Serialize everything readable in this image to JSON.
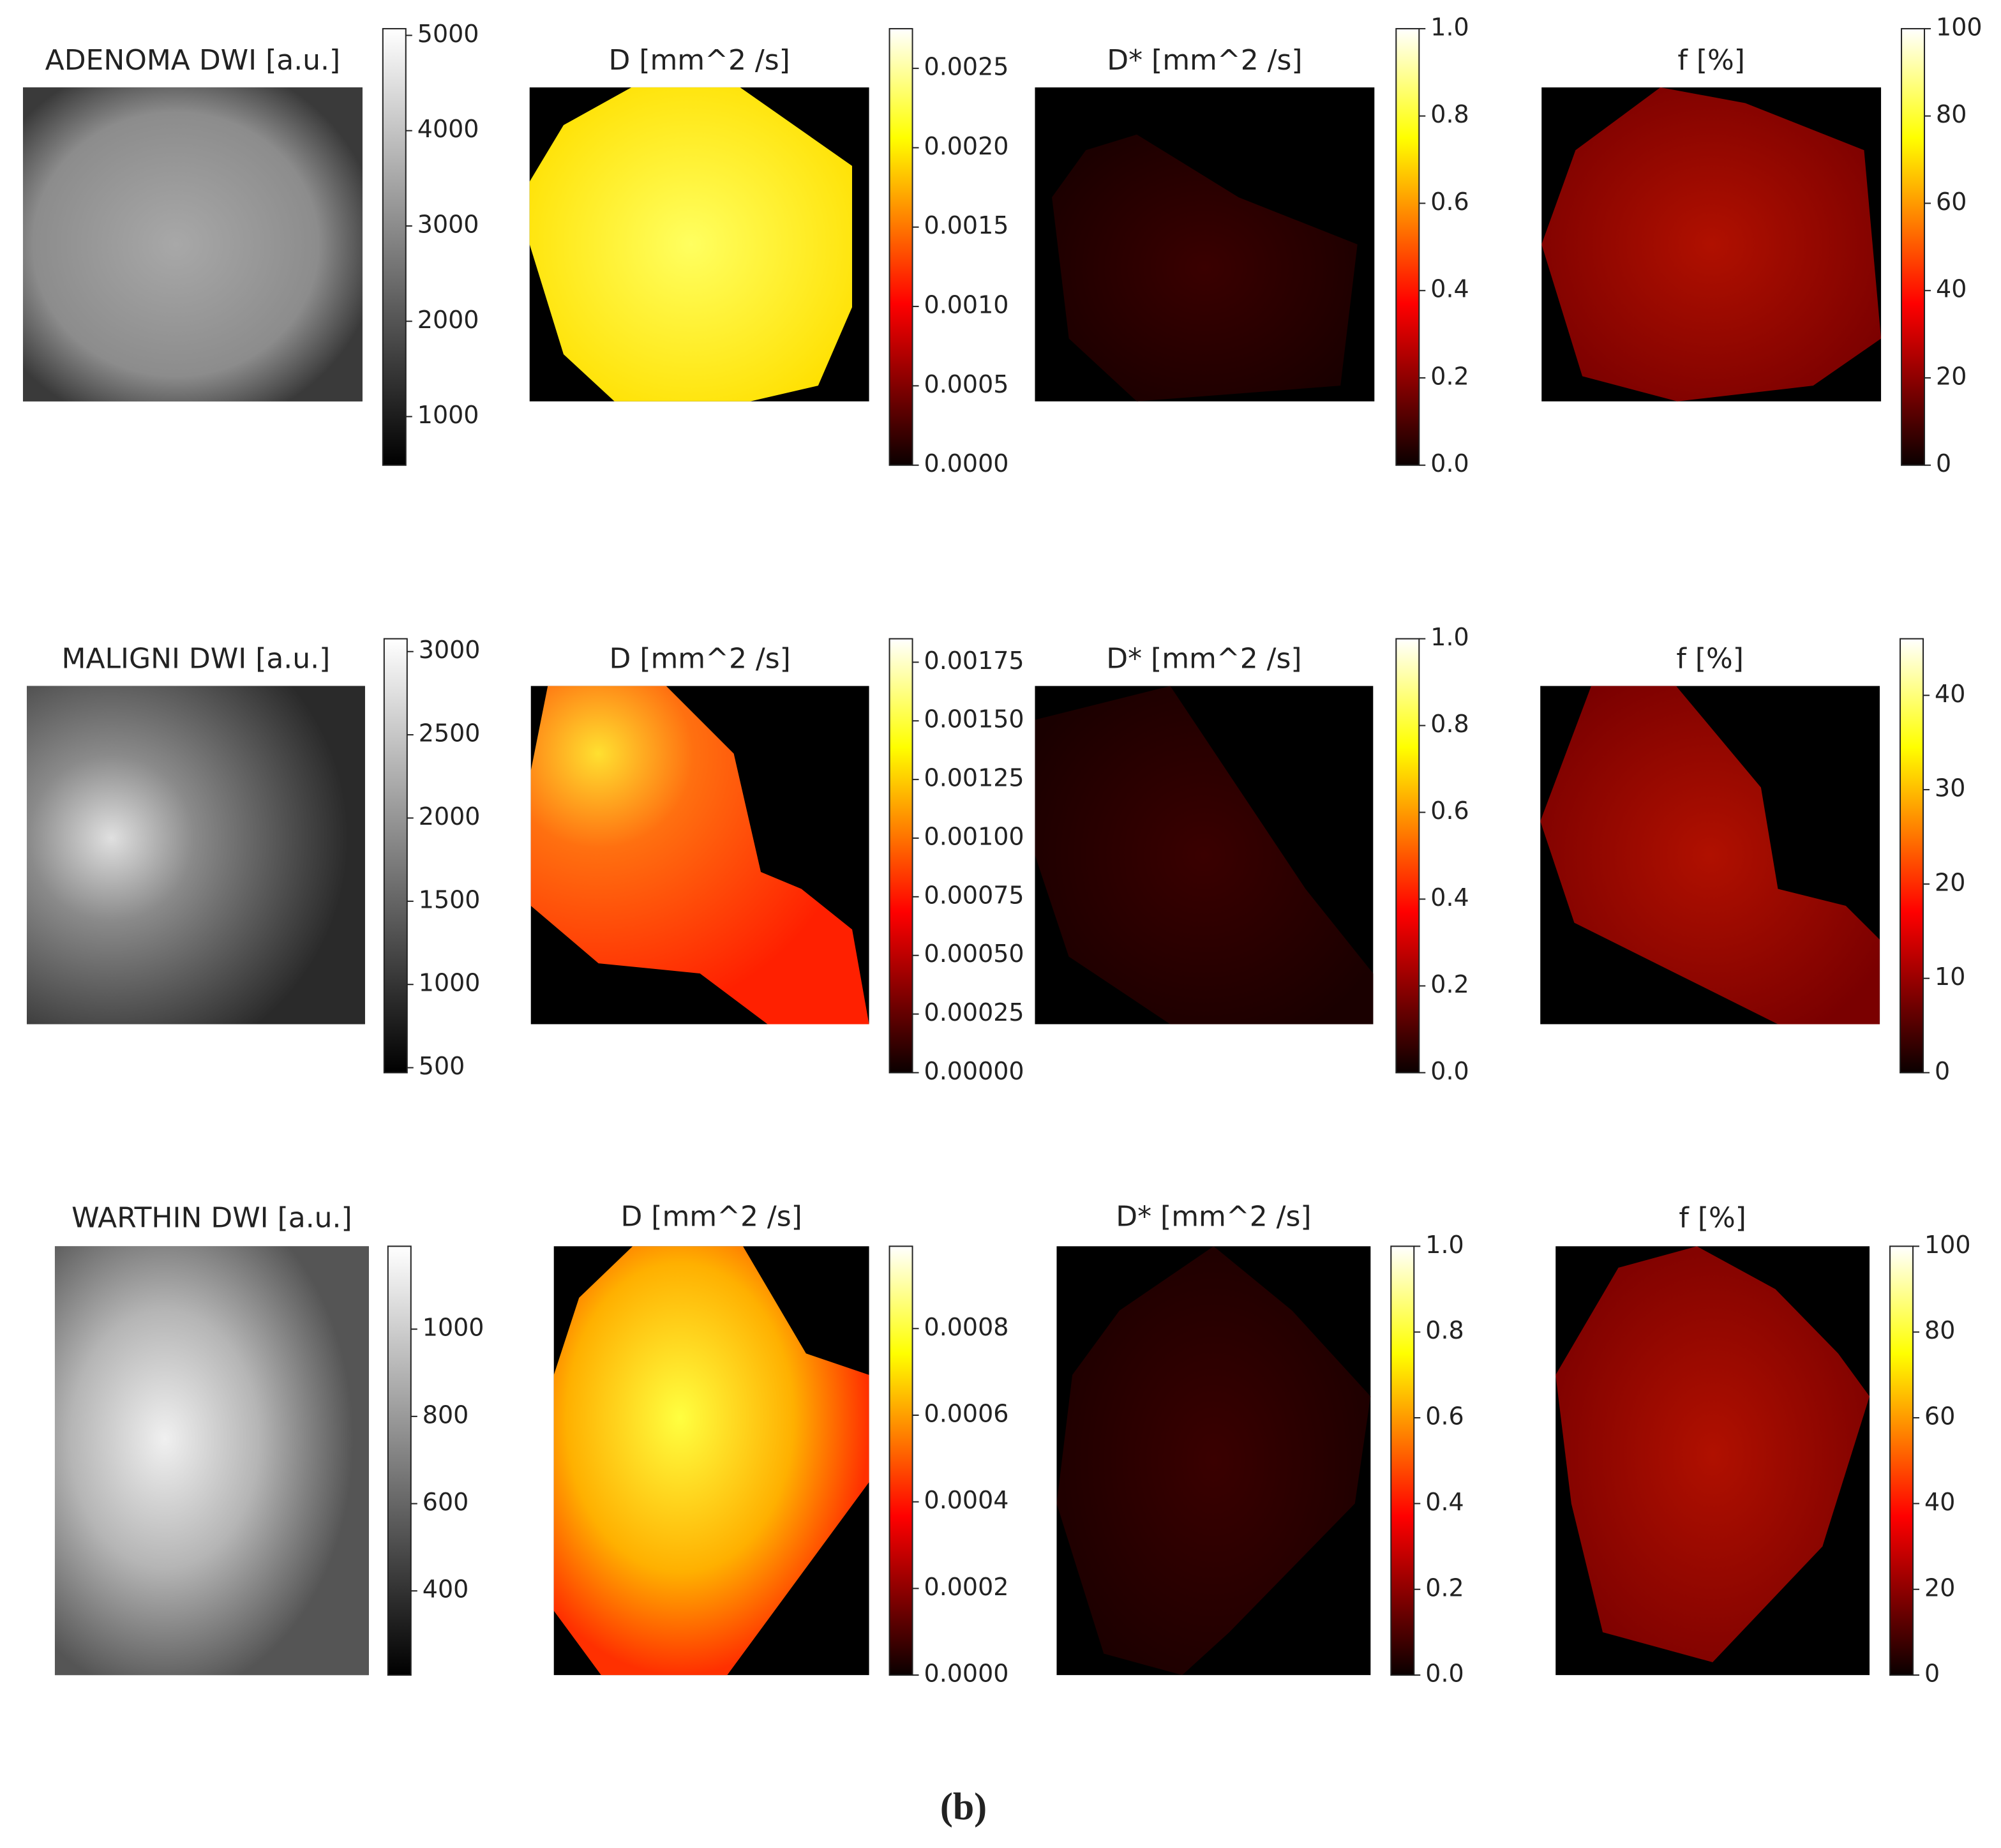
{
  "chart_data": [
    {
      "type": "heatmap",
      "title": "ADENOMA DWI [a.u.]",
      "cmap": "gray",
      "clim": [
        490,
        5070
      ],
      "cticks": [
        1000,
        2000,
        3000,
        4000,
        5000
      ]
    },
    {
      "type": "heatmap",
      "title": "D [mm^2 /s]",
      "cmap": "hot",
      "clim": [
        0,
        0.00275
      ],
      "cticks": [
        {
          "value": 0,
          "label": "0.0000"
        },
        0.0005,
        {
          "value": 0.001,
          "label": "0.0010"
        },
        0.0015,
        {
          "value": 0.002,
          "label": "0.0020"
        },
        0.0025
      ]
    },
    {
      "type": "heatmap",
      "title": "D* [mm^2 /s]",
      "cmap": "hot",
      "clim": [
        0,
        1
      ],
      "cticks": [
        {
          "value": 0,
          "label": "0.0"
        },
        0.2,
        0.4,
        0.6,
        0.8,
        {
          "value": 1,
          "label": "1.0"
        }
      ]
    },
    {
      "type": "heatmap",
      "title": "f [%]",
      "cmap": "hot",
      "clim": [
        0,
        100
      ],
      "cticks": [
        0,
        20,
        40,
        60,
        80,
        100
      ]
    },
    {
      "type": "heatmap",
      "title": "MALIGNI DWI [a.u.]",
      "cmap": "gray",
      "clim": [
        470,
        3077
      ],
      "cticks": [
        500,
        1000,
        1500,
        2000,
        2500,
        3000
      ]
    },
    {
      "type": "heatmap",
      "title": "D [mm^2 /s]",
      "cmap": "hot",
      "clim": [
        0,
        0.00185
      ],
      "cticks": [
        {
          "value": 0,
          "label": "0.00000"
        },
        0.00025,
        {
          "value": 0.0005,
          "label": "0.00050"
        },
        0.00075,
        {
          "value": 0.001,
          "label": "0.00100"
        },
        0.00125,
        {
          "value": 0.0015,
          "label": "0.00150"
        },
        0.00175
      ]
    },
    {
      "type": "heatmap",
      "title": "D* [mm^2 /s]",
      "cmap": "hot",
      "clim": [
        0,
        1
      ],
      "cticks": [
        {
          "value": 0,
          "label": "0.0"
        },
        0.2,
        0.4,
        0.6,
        0.8,
        {
          "value": 1,
          "label": "1.0"
        }
      ]
    },
    {
      "type": "heatmap",
      "title": "f [%]",
      "cmap": "hot",
      "clim": [
        0,
        46
      ],
      "cticks": [
        0,
        10,
        20,
        30,
        40
      ]
    },
    {
      "type": "heatmap",
      "title": "WARTHIN DWI [a.u.]",
      "cmap": "gray",
      "clim": [
        207,
        1190
      ],
      "cticks": [
        400,
        600,
        800,
        1000
      ]
    },
    {
      "type": "heatmap",
      "title": "D [mm^2 /s]",
      "cmap": "hot",
      "clim": [
        0,
        0.00099
      ],
      "cticks": [
        {
          "value": 0,
          "label": "0.0000"
        },
        0.0002,
        0.0004,
        0.0006,
        0.0008
      ]
    },
    {
      "type": "heatmap",
      "title": "D* [mm^2 /s]",
      "cmap": "hot",
      "clim": [
        0,
        1
      ],
      "cticks": [
        {
          "value": 0,
          "label": "0.0"
        },
        0.2,
        0.4,
        0.6,
        0.8,
        {
          "value": 1,
          "label": "1.0"
        }
      ]
    },
    {
      "type": "heatmap",
      "title": "f [%]",
      "cmap": "hot",
      "clim": [
        0,
        100
      ],
      "cticks": [
        0,
        20,
        40,
        60,
        80,
        100
      ]
    }
  ],
  "caption": "(b)"
}
